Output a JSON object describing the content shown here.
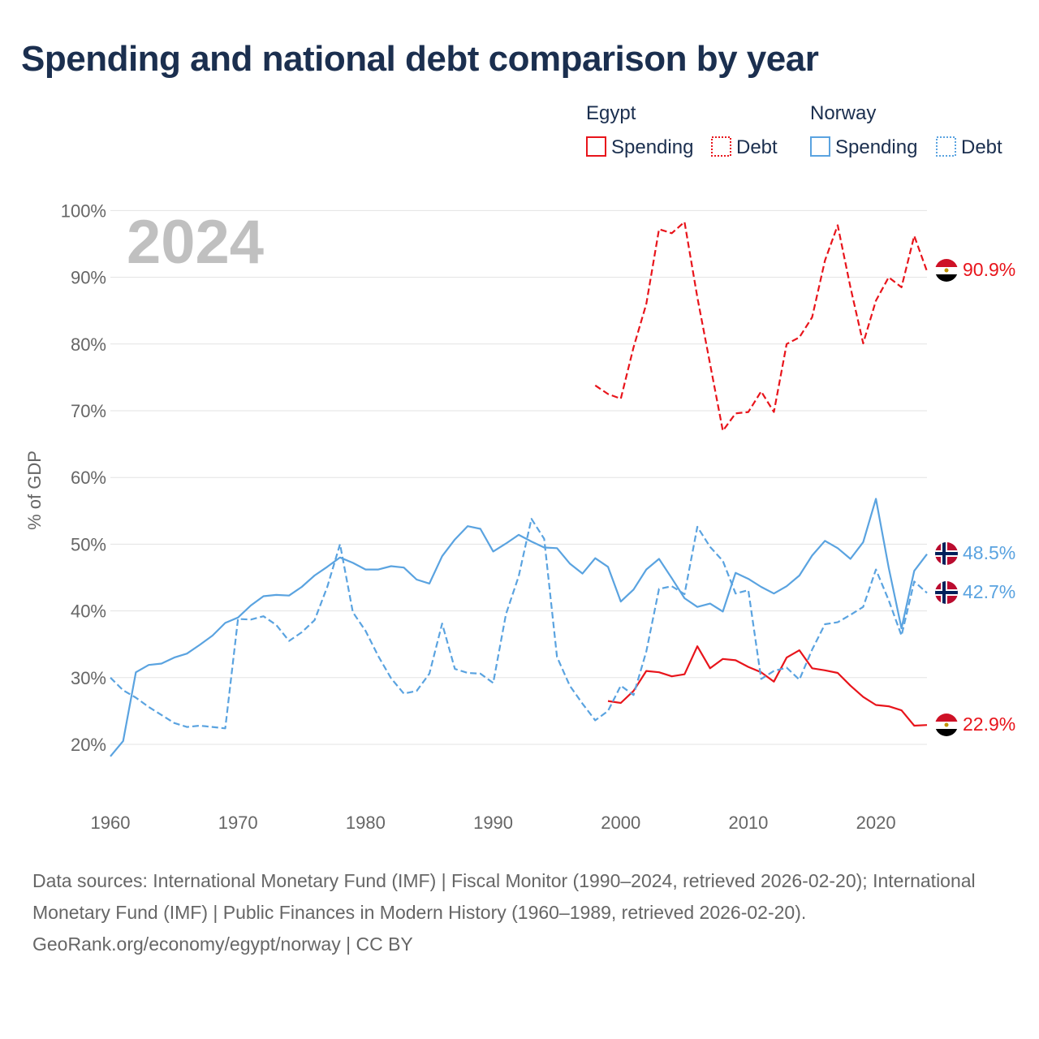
{
  "title": "Spending and national debt comparison by year",
  "legend": {
    "groups": [
      {
        "name": "Egypt",
        "items": [
          "Spending",
          "Debt"
        ],
        "color": "#e8141b"
      },
      {
        "name": "Norway",
        "items": [
          "Spending",
          "Debt"
        ],
        "color": "#5aa3e0"
      }
    ]
  },
  "highlight_year": "2024",
  "footer": {
    "sources": "Data sources: International Monetary Fund (IMF) | Fiscal Monitor (1990–2024, retrieved 2026-02-20); International Monetary Fund (IMF) | Public Finances in Modern History (1960–1989, retrieved 2026-02-20).",
    "credit": "GeoRank.org/economy/egypt/norway | CC BY"
  },
  "chart_data": {
    "type": "line",
    "ylabel": "% of GDP",
    "xlim": [
      1960,
      2024
    ],
    "ylim": [
      15,
      102
    ],
    "x_ticks": [
      1960,
      1970,
      1980,
      1990,
      2000,
      2010,
      2020
    ],
    "y_ticks": [
      20,
      30,
      40,
      50,
      60,
      70,
      80,
      90,
      100
    ],
    "y_tick_labels": [
      "20%",
      "30%",
      "40%",
      "50%",
      "60%",
      "70%",
      "80%",
      "90%",
      "100%"
    ],
    "series": [
      {
        "name": "Egypt Debt",
        "country": "Egypt",
        "metric": "Debt",
        "color": "#e8141b",
        "dash": true,
        "start_year": 1998,
        "values": [
          73.8,
          72.5,
          71.8,
          79.5,
          86,
          97.2,
          96.6,
          98.3,
          87,
          77,
          67,
          69.6,
          69.8,
          72.9,
          69.8,
          80,
          81,
          84,
          92.5,
          97.8,
          88.5,
          80.1,
          86.5,
          90,
          88.5,
          96.2,
          90.9
        ],
        "end_label": "90.9%"
      },
      {
        "name": "Egypt Spending",
        "country": "Egypt",
        "metric": "Spending",
        "color": "#e8141b",
        "dash": false,
        "start_year": 1999,
        "values": [
          26.5,
          26.2,
          28,
          31,
          30.8,
          30.2,
          30.5,
          34.7,
          31.4,
          32.8,
          32.6,
          31.6,
          30.8,
          29.4,
          33,
          34.1,
          31.4,
          31.1,
          30.7,
          28.8,
          27.1,
          25.9,
          25.7,
          25.1,
          22.8,
          22.9
        ],
        "end_label": "22.9%"
      },
      {
        "name": "Norway Spending",
        "country": "Norway",
        "metric": "Spending",
        "color": "#5aa3e0",
        "dash": false,
        "start_year": 1960,
        "values": [
          18.2,
          20.5,
          30.8,
          31.9,
          32.1,
          33,
          33.6,
          34.9,
          36.3,
          38.2,
          39,
          40.8,
          42.2,
          42.4,
          42.3,
          43.6,
          45.3,
          46.6,
          48,
          47.2,
          46.2,
          46.2,
          46.7,
          46.5,
          44.7,
          44.1,
          48.2,
          50.7,
          52.7,
          52.3,
          48.9,
          50.1,
          51.4,
          50.4,
          49.5,
          49.4,
          47.1,
          45.6,
          47.9,
          46.6,
          41.4,
          43.2,
          46.2,
          47.8,
          44.9,
          41.9,
          40.6,
          41.1,
          39.9,
          45.7,
          44.8,
          43.6,
          42.6,
          43.7,
          45.3,
          48.3,
          50.5,
          49.4,
          47.8,
          50.3,
          56.8,
          46.5,
          37.4,
          46,
          48.5
        ],
        "end_label": "48.5%"
      },
      {
        "name": "Norway Debt",
        "country": "Norway",
        "metric": "Debt",
        "color": "#5aa3e0",
        "dash": true,
        "start_year": 1960,
        "values": [
          30,
          28.1,
          27,
          25.6,
          24.4,
          23.2,
          22.6,
          22.8,
          22.6,
          22.4,
          38.8,
          38.7,
          39.2,
          37.9,
          35.5,
          36.8,
          38.6,
          43.6,
          50,
          39.8,
          37,
          33.2,
          29.9,
          27.6,
          28,
          30.6,
          38.1,
          31.3,
          30.7,
          30.6,
          29.2,
          39.5,
          45.2,
          53.8,
          50.8,
          33.1,
          28.8,
          26.1,
          23.6,
          25,
          28.8,
          27.4,
          33.9,
          43.3,
          43.7,
          42.5,
          52.6,
          49.6,
          47.5,
          42.6,
          43.1,
          29.8,
          31,
          31.5,
          29.7,
          34.2,
          38,
          38.3,
          39.4,
          40.6,
          46.2,
          41.6,
          36.3,
          44.4,
          42.7
        ],
        "end_label": "42.7%"
      }
    ]
  }
}
